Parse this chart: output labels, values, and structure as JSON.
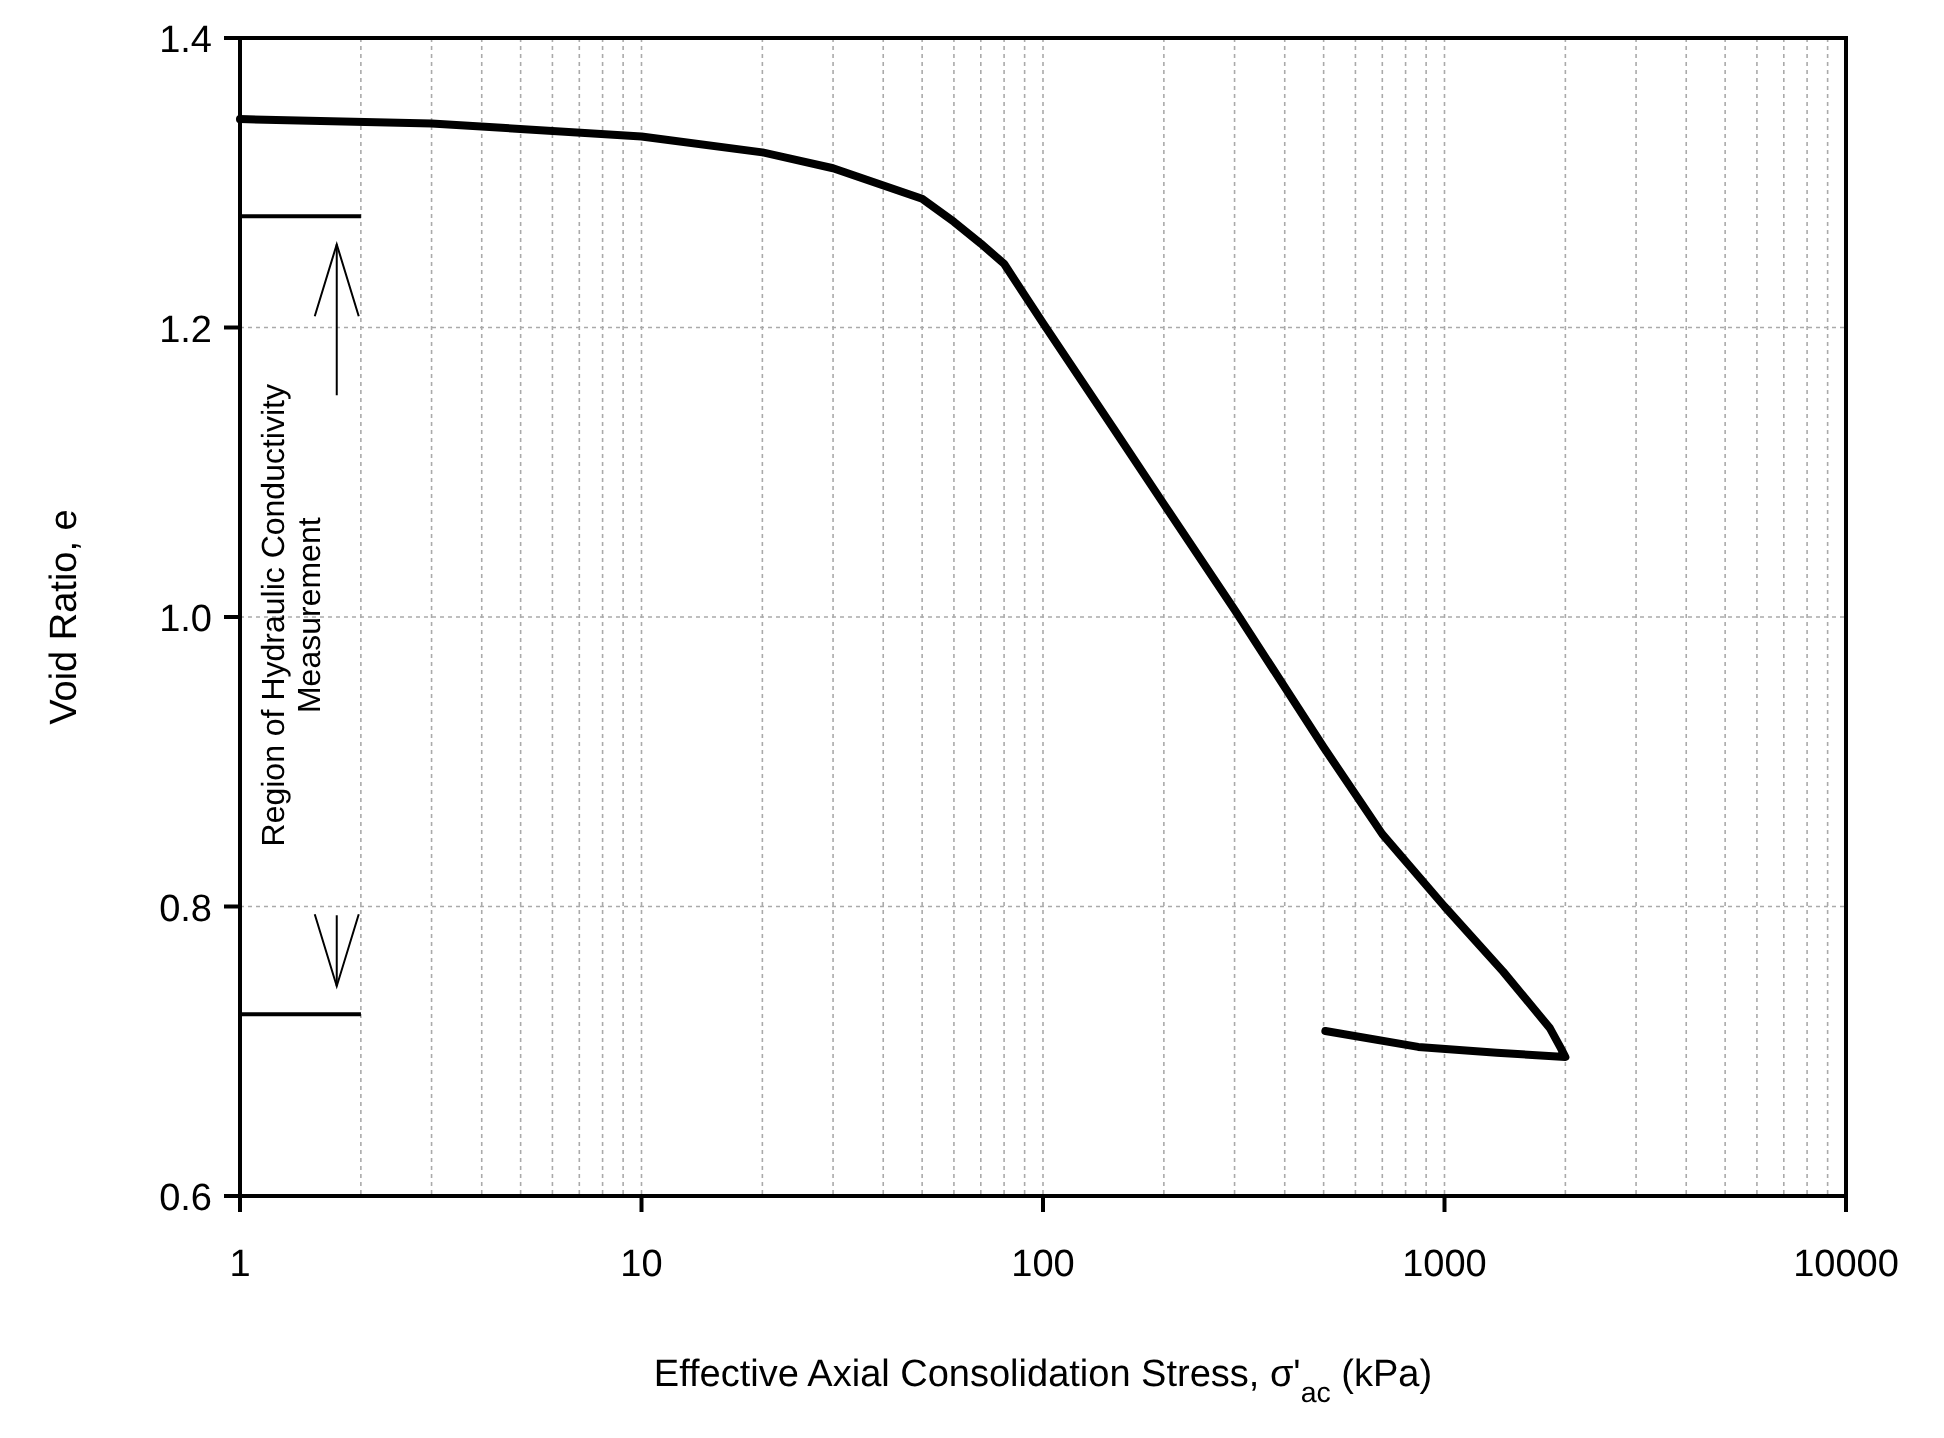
{
  "chart_data": {
    "type": "line",
    "xlabel": "Effective Axial Consolidation Stress, σ'$_{ac}$ (kPa)",
    "ylabel": "Void Ratio, e",
    "log": "x",
    "grid": true,
    "xlim": [
      1,
      10000
    ],
    "ylim": [
      0.6,
      1.4
    ],
    "xticks": [
      1,
      10,
      100,
      1000,
      10000
    ],
    "yticks": [
      {
        "value": 0.6,
        "label": "0.6"
      },
      {
        "value": 0.8,
        "label": "0.8"
      },
      {
        "value": 1.0,
        "label": "1.0"
      },
      {
        "value": 1.2,
        "label": "1.2"
      },
      {
        "value": 1.4,
        "label": "1.4"
      }
    ],
    "series": [
      {
        "color": "#000000",
        "x": [
          1,
          3,
          10,
          20,
          30,
          50,
          60,
          70,
          80,
          100,
          150,
          200,
          300,
          500,
          700,
          1000,
          1400,
          1830,
          1950,
          2000,
          1350,
          860,
          505
        ],
        "values": [
          1.344,
          1.341,
          1.332,
          1.321,
          1.31,
          1.289,
          1.273,
          1.258,
          1.244,
          1.203,
          1.13,
          1.078,
          1.005,
          0.91,
          0.85,
          0.8,
          0.755,
          0.716,
          0.702,
          0.696,
          0.699,
          0.703,
          0.714
        ]
      }
    ],
    "annotations": [
      "Region of Hydraulic Conductivity Measurement"
    ]
  }
}
